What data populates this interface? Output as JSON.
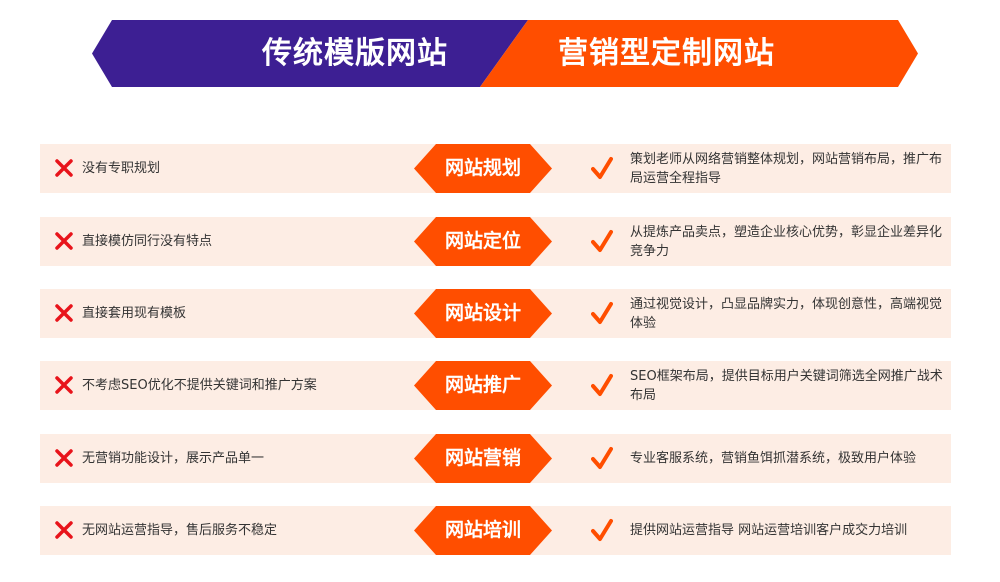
{
  "colors": {
    "traditional": "#3d1f93",
    "marketing": "#ff4e00",
    "row_bg": "#fdede4",
    "cross": "#e8141b",
    "check": "#ff4e00"
  },
  "header": {
    "left_title": "传统模版网站",
    "right_title": "营销型定制网站"
  },
  "rows": [
    {
      "negative": "没有专职规划",
      "badge": "网站规划",
      "positive": "策划老师从网络营销整体规划，网站营销布局，推广布局运营全程指导"
    },
    {
      "negative": "直接模仿同行没有特点",
      "badge": "网站定位",
      "positive": "从提炼产品卖点，塑造企业核心优势，彰显企业差异化竞争力"
    },
    {
      "negative": "直接套用现有模板",
      "badge": "网站设计",
      "positive": "通过视觉设计，凸显品牌实力，体现创意性，高端视觉体验"
    },
    {
      "negative": "不考虑SEO优化不提供关键词和推广方案",
      "badge": "网站推广",
      "positive": "SEO框架布局，提供目标用户关键词筛选全网推广战术布局"
    },
    {
      "negative": "无营销功能设计，展示产品单一",
      "badge": "网站营销",
      "positive": "专业客服系统，营销鱼饵抓潜系统，极致用户体验"
    },
    {
      "negative": "无网站运营指导，售后服务不稳定",
      "badge": "网站培训",
      "positive": "提供网站运营指导 网站运营培训客户成交力培训"
    }
  ]
}
